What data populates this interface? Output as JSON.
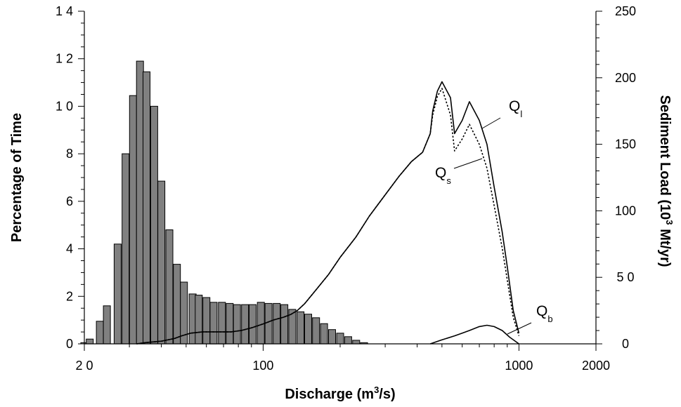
{
  "chart_data": {
    "type": "bar",
    "xlabel": {
      "text": "Discharge (m",
      "sup": "3",
      "suffix": "/s)"
    },
    "ylabel_left": "Percentage of Time",
    "ylabel_right": {
      "text": "Sediment Load (10",
      "sup": "3",
      "suffix": " Mt/yr)"
    },
    "x_scale": "log",
    "xlim": [
      20,
      2000
    ],
    "x_ticks": [
      {
        "value": 20,
        "label": "2 0"
      },
      {
        "value": 100,
        "label": "100"
      },
      {
        "value": 1000,
        "label": "1000"
      },
      {
        "value": 2000,
        "label": "2000"
      }
    ],
    "ylim_left": [
      0,
      14
    ],
    "y_ticks_left": [
      {
        "value": 0,
        "label": "0"
      },
      {
        "value": 2,
        "label": "2"
      },
      {
        "value": 4,
        "label": "4"
      },
      {
        "value": 6,
        "label": "6"
      },
      {
        "value": 8,
        "label": "8"
      },
      {
        "value": 10,
        "label": "1 0"
      },
      {
        "value": 12,
        "label": "1 2"
      },
      {
        "value": 14,
        "label": "1 4"
      }
    ],
    "ylim_right": [
      0,
      250
    ],
    "y_ticks_right": [
      {
        "value": 0,
        "label": "0"
      },
      {
        "value": 50,
        "label": "5 0"
      },
      {
        "value": 100,
        "label": "100"
      },
      {
        "value": 150,
        "label": "150"
      },
      {
        "value": 200,
        "label": "200"
      },
      {
        "value": 250,
        "label": "250"
      }
    ],
    "grid": false,
    "bars": {
      "axis": "left",
      "color": "#808080",
      "x": [
        20,
        21,
        23,
        24.5,
        27,
        29,
        31,
        33,
        35,
        37.5,
        40,
        43,
        46,
        49,
        53,
        56,
        60,
        64,
        69,
        74,
        79,
        85,
        91,
        98,
        105,
        113,
        121,
        130,
        140,
        150,
        161,
        173,
        186,
        200,
        215,
        231,
        248,
        267,
        287,
        308,
        331,
        356,
        383,
        412,
        443,
        476,
        512,
        550,
        591,
        636,
        683,
        735,
        790,
        849,
        913,
        981
      ],
      "values": [
        0.05,
        0.2,
        0.95,
        1.6,
        4.2,
        8.0,
        10.45,
        11.9,
        11.45,
        10.0,
        6.85,
        4.8,
        3.35,
        2.6,
        2.1,
        2.05,
        1.95,
        1.75,
        1.75,
        1.7,
        1.65,
        1.65,
        1.65,
        1.75,
        1.7,
        1.7,
        1.65,
        1.45,
        1.35,
        1.25,
        1.1,
        0.85,
        0.6,
        0.45,
        0.3,
        0.15,
        0.05,
        0,
        0,
        0,
        0,
        0,
        0,
        0,
        0,
        0,
        0,
        0,
        0,
        0,
        0,
        0,
        0,
        0,
        0,
        0
      ]
    },
    "series": [
      {
        "label": "Q",
        "label_sub": "l",
        "axis": "right",
        "style": "solid",
        "x": [
          32,
          35,
          40,
          45,
          48,
          52,
          58,
          65,
          75,
          82,
          90,
          100,
          110,
          120,
          128,
          136,
          145,
          160,
          180,
          200,
          230,
          260,
          300,
          340,
          380,
          420,
          450,
          460,
          480,
          500,
          540,
          560,
          600,
          640,
          700,
          750,
          800,
          860,
          900,
          950,
          1000
        ],
        "values": [
          0,
          1,
          2,
          4,
          6,
          8,
          9,
          9,
          9,
          10,
          12,
          15,
          18,
          20,
          22,
          25,
          30,
          40,
          52,
          65,
          80,
          96,
          112,
          126,
          137,
          144,
          158,
          175,
          190,
          197,
          185,
          158,
          168,
          182,
          168,
          150,
          118,
          84,
          58,
          25,
          8
        ]
      },
      {
        "label": "Q",
        "label_sub": "s",
        "axis": "right",
        "style": "dotted",
        "x": [
          32,
          35,
          40,
          45,
          48,
          52,
          58,
          65,
          75,
          82,
          90,
          100,
          110,
          120,
          128,
          136,
          145,
          160,
          180,
          200,
          230,
          260,
          300,
          340,
          380,
          420,
          450,
          460,
          480,
          500,
          540,
          560,
          600,
          640,
          700,
          750,
          800,
          860,
          900,
          950,
          1000
        ],
        "values": [
          0,
          1,
          2,
          4,
          6,
          8,
          9,
          9,
          9,
          10,
          12,
          15,
          18,
          20,
          22,
          25,
          30,
          40,
          52,
          65,
          80,
          96,
          112,
          126,
          137,
          144,
          158,
          172,
          186,
          192,
          172,
          145,
          154,
          165,
          150,
          132,
          104,
          72,
          48,
          20,
          6
        ]
      },
      {
        "label": "Q",
        "label_sub": "b",
        "axis": "right",
        "style": "solid",
        "x": [
          450,
          500,
          560,
          600,
          640,
          700,
          750,
          800,
          860,
          920,
          1000
        ],
        "values": [
          0,
          3,
          6,
          8,
          10,
          13,
          14,
          13,
          10,
          5,
          0
        ]
      }
    ]
  }
}
